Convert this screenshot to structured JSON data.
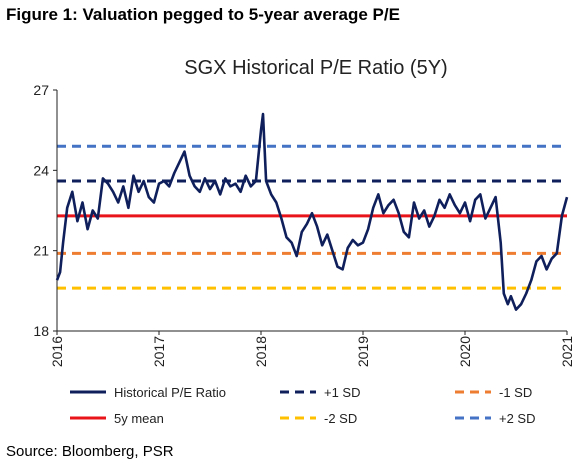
{
  "figure_title": "Figure 1: Valuation pegged to 5-year average P/E",
  "source": "Source: Bloomberg, PSR",
  "colors": {
    "series": "#0f1f5c",
    "mean": "#e8141a",
    "plus1": "#0f1f5c",
    "minus1": "#ee7d31",
    "minus2": "#ffc000",
    "plus2": "#4472c4"
  },
  "chart_data": {
    "type": "line",
    "title": "SGX Historical P/E Ratio (5Y)",
    "xlabel": "",
    "ylabel": "",
    "xlim": [
      2016,
      2021
    ],
    "ylim": [
      18,
      27
    ],
    "x_ticks": [
      "2016",
      "2017",
      "2018",
      "2019",
      "2020",
      "2021"
    ],
    "y_ticks": [
      "18",
      "21",
      "24",
      "27"
    ],
    "grid": false,
    "legend_position": "bottom",
    "series": [
      {
        "name": "Historical P/E Ratio",
        "x": [
          2016.0,
          2016.03,
          2016.06,
          2016.1,
          2016.15,
          2016.2,
          2016.25,
          2016.3,
          2016.35,
          2016.4,
          2016.45,
          2016.5,
          2016.55,
          2016.6,
          2016.65,
          2016.7,
          2016.75,
          2016.8,
          2016.85,
          2016.9,
          2016.95,
          2017.0,
          2017.05,
          2017.1,
          2017.15,
          2017.2,
          2017.25,
          2017.3,
          2017.35,
          2017.4,
          2017.45,
          2017.5,
          2017.55,
          2017.6,
          2017.65,
          2017.7,
          2017.75,
          2017.8,
          2017.85,
          2017.9,
          2017.95,
          2018.0,
          2018.02,
          2018.05,
          2018.1,
          2018.15,
          2018.2,
          2018.25,
          2018.3,
          2018.35,
          2018.4,
          2018.45,
          2018.5,
          2018.55,
          2018.6,
          2018.65,
          2018.7,
          2018.75,
          2018.8,
          2018.85,
          2018.9,
          2018.95,
          2019.0,
          2019.05,
          2019.1,
          2019.15,
          2019.2,
          2019.25,
          2019.3,
          2019.35,
          2019.4,
          2019.45,
          2019.5,
          2019.55,
          2019.6,
          2019.65,
          2019.7,
          2019.75,
          2019.8,
          2019.85,
          2019.9,
          2019.95,
          2020.0,
          2020.05,
          2020.1,
          2020.15,
          2020.2,
          2020.25,
          2020.3,
          2020.35,
          2020.38,
          2020.42,
          2020.45,
          2020.5,
          2020.55,
          2020.6,
          2020.65,
          2020.7,
          2020.75,
          2020.8,
          2020.85,
          2020.9,
          2020.95,
          2021.0
        ],
        "values": [
          19.9,
          20.2,
          21.3,
          22.6,
          23.2,
          22.1,
          22.8,
          21.8,
          22.5,
          22.2,
          23.7,
          23.5,
          23.2,
          22.8,
          23.4,
          22.6,
          23.8,
          23.2,
          23.6,
          23.0,
          22.8,
          23.5,
          23.6,
          23.4,
          23.9,
          24.3,
          24.7,
          23.8,
          23.4,
          23.2,
          23.7,
          23.3,
          23.6,
          23.1,
          23.7,
          23.4,
          23.5,
          23.2,
          23.8,
          23.4,
          23.6,
          25.5,
          26.1,
          23.6,
          23.1,
          22.8,
          22.2,
          21.5,
          21.3,
          20.8,
          21.7,
          22.0,
          22.4,
          21.9,
          21.2,
          21.6,
          21.0,
          20.4,
          20.3,
          21.1,
          21.4,
          21.2,
          21.3,
          21.8,
          22.6,
          23.1,
          22.4,
          22.7,
          22.9,
          22.4,
          21.7,
          21.5,
          22.8,
          22.2,
          22.5,
          21.9,
          22.3,
          22.9,
          22.6,
          23.1,
          22.7,
          22.4,
          22.8,
          22.1,
          22.9,
          23.1,
          22.2,
          22.6,
          23.0,
          21.3,
          19.4,
          19.0,
          19.3,
          18.8,
          19.0,
          19.4,
          19.9,
          20.6,
          20.8,
          20.3,
          20.7,
          20.9,
          22.3,
          23.0
        ]
      }
    ],
    "reference_lines": [
      {
        "name": "+2 SD",
        "value": 24.9,
        "style": "dashed",
        "color_key": "plus2"
      },
      {
        "name": "+1 SD",
        "value": 23.6,
        "style": "dashed",
        "color_key": "plus1"
      },
      {
        "name": "5y mean",
        "value": 22.3,
        "style": "solid",
        "color_key": "mean"
      },
      {
        "name": "-1 SD",
        "value": 20.9,
        "style": "dashed",
        "color_key": "minus1"
      },
      {
        "name": "-2 SD",
        "value": 19.6,
        "style": "dashed",
        "color_key": "minus2"
      }
    ],
    "legend": [
      {
        "label": "Historical P/E Ratio",
        "style": "solid",
        "color_key": "series"
      },
      {
        "label": "+1 SD",
        "style": "dashed",
        "color_key": "plus1"
      },
      {
        "label": "-1 SD",
        "style": "dashed",
        "color_key": "minus1"
      },
      {
        "label": "5y mean",
        "style": "solid",
        "color_key": "mean"
      },
      {
        "label": "-2 SD",
        "style": "dashed",
        "color_key": "minus2"
      },
      {
        "label": "+2 SD",
        "style": "dashed",
        "color_key": "plus2"
      }
    ]
  }
}
